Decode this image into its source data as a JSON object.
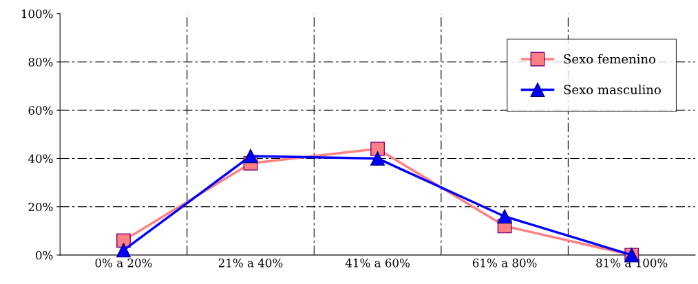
{
  "chart_data": {
    "type": "line",
    "categories": [
      "0% a 20%",
      "21% a 40%",
      "41% a 60%",
      "61% a 80%",
      "81% a 100%"
    ],
    "series": [
      {
        "name": "Sexo femenino",
        "color": "#ff8080",
        "marker": "square",
        "values": [
          6,
          38,
          44,
          12,
          0
        ]
      },
      {
        "name": "Sexo masculino",
        "color": "#0000ff",
        "marker": "triangle",
        "values": [
          2,
          41,
          40,
          16,
          0
        ]
      }
    ],
    "ylim": [
      0,
      100
    ],
    "yticks": [
      {
        "value": 0,
        "label": "0%"
      },
      {
        "value": 20,
        "label": "20%"
      },
      {
        "value": 40,
        "label": "40%"
      },
      {
        "value": 60,
        "label": "60%"
      },
      {
        "value": 80,
        "label": "80%"
      },
      {
        "value": 100,
        "label": "100%"
      }
    ],
    "grid": true,
    "legend": "top right",
    "line_style": "solid"
  }
}
